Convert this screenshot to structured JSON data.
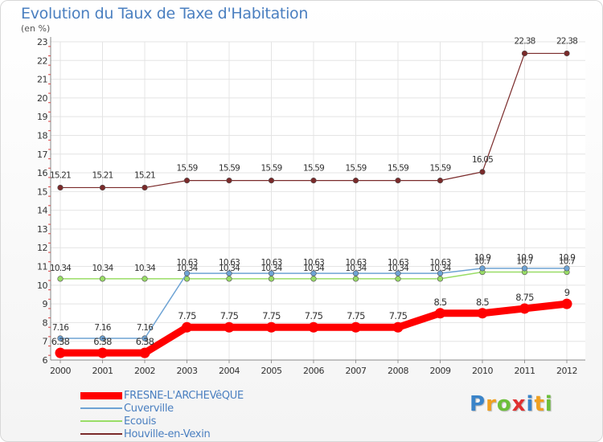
{
  "chart_data": {
    "type": "line",
    "title": "Evolution du Taux de Taxe d'Habitation",
    "unit_label": "(en %)",
    "xlabel": "",
    "ylabel": "",
    "ylim": [
      6,
      23
    ],
    "yticks": [
      6,
      7,
      8,
      9,
      10,
      11,
      12,
      13,
      14,
      15,
      16,
      17,
      18,
      19,
      20,
      21,
      22,
      23
    ],
    "categories": [
      "2000",
      "2001",
      "2002",
      "2003",
      "2004",
      "2005",
      "2006",
      "2007",
      "2008",
      "2009",
      "2010",
      "2011",
      "2012"
    ],
    "series": [
      {
        "name": "FRESNE-L'ARCHEVêQUE",
        "color": "#ff0000",
        "values": [
          6.38,
          6.38,
          6.38,
          7.75,
          7.75,
          7.75,
          7.75,
          7.75,
          7.75,
          8.5,
          8.5,
          8.75,
          9
        ],
        "labels": [
          "6.38",
          "6.38",
          "6.38",
          "7.75",
          "7.75",
          "7.75",
          "7.75",
          "7.75",
          "7.75",
          "8.5",
          "8.5",
          "8.75",
          "9"
        ]
      },
      {
        "name": "Cuverville",
        "color": "#6ea3d4",
        "values": [
          7.16,
          7.16,
          7.16,
          10.63,
          10.63,
          10.63,
          10.63,
          10.63,
          10.63,
          10.63,
          10.9,
          10.9,
          10.9
        ],
        "labels": [
          "7.16",
          "7.16",
          "7.16",
          "10.63",
          "10.63",
          "10.63",
          "10.63",
          "10.63",
          "10.63",
          "10.63",
          "10.9",
          "10.9",
          "10.9"
        ]
      },
      {
        "name": "Ecouis",
        "color": "#99dd66",
        "values": [
          10.34,
          10.34,
          10.34,
          10.34,
          10.34,
          10.34,
          10.34,
          10.34,
          10.34,
          10.34,
          10.7,
          10.7,
          10.7
        ],
        "labels": [
          "10.34",
          "10.34",
          "10.34",
          "10.34",
          "10.34",
          "10.34",
          "10.34",
          "10.34",
          "10.34",
          "10.34",
          "10.7",
          "10.7",
          "10.7"
        ]
      },
      {
        "name": "Houville-en-Vexin",
        "color": "#7a2a2a",
        "values": [
          15.21,
          15.21,
          15.21,
          15.59,
          15.59,
          15.59,
          15.59,
          15.59,
          15.59,
          15.59,
          16.05,
          22.38,
          22.38
        ],
        "labels": [
          "15.21",
          "15.21",
          "15.21",
          "15.59",
          "15.59",
          "15.59",
          "15.59",
          "15.59",
          "15.59",
          "15.59",
          "16.05",
          "22.38",
          "22.38"
        ]
      }
    ]
  },
  "logo": {
    "letters": [
      "P",
      "r",
      "o",
      "x",
      "i",
      "t",
      "i"
    ],
    "colors": [
      "#3a84c9",
      "#f0a020",
      "#6cbf3a",
      "#e03030",
      "#3a84c9",
      "#f0a020",
      "#6cbf3a"
    ]
  }
}
